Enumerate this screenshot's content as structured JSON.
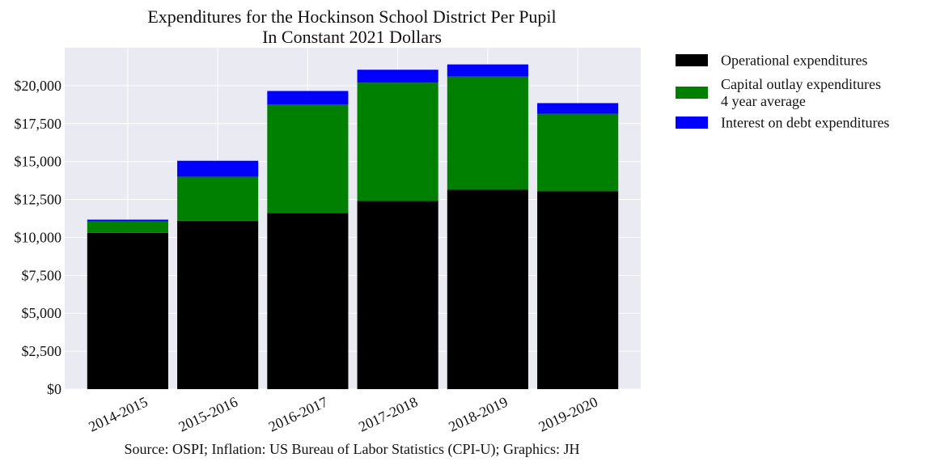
{
  "chart_data": {
    "type": "bar",
    "stacked": true,
    "title": [
      "Expenditures for the Hockinson School District Per Pupil",
      "In Constant 2021 Dollars"
    ],
    "categories": [
      "2014-2015",
      "2015-2016",
      "2016-2017",
      "2017-2018",
      "2018-2019",
      "2019-2020"
    ],
    "series": [
      {
        "name": "Operational expenditures",
        "color": "#000000",
        "values": [
          10300,
          11100,
          11600,
          12400,
          13150,
          13050
        ]
      },
      {
        "name": "Capital outlay expenditures\n4 year average",
        "color": "#008000",
        "values": [
          750,
          2900,
          7150,
          7800,
          7450,
          5100
        ]
      },
      {
        "name": "Interest on debt expenditures",
        "color": "#0000ff",
        "values": [
          120,
          1050,
          900,
          850,
          800,
          700
        ]
      }
    ],
    "ylim": [
      0,
      22500
    ],
    "yticks": [
      0,
      2500,
      5000,
      7500,
      10000,
      12500,
      15000,
      17500,
      20000
    ],
    "ytick_labels": [
      "$0",
      "$2,500",
      "$5,000",
      "$7,500",
      "$10,000",
      "$12,500",
      "$15,000",
      "$17,500",
      "$20,000"
    ],
    "xlabel": "",
    "ylabel": "",
    "grid": true,
    "legend_position": "outside-right",
    "source": "Source: OSPI; Inflation: US Bureau of Labor Statistics (CPI-U); Graphics: JH",
    "colors": {
      "plot_background": "#eaeaf2",
      "grid": "#ffffff"
    }
  }
}
